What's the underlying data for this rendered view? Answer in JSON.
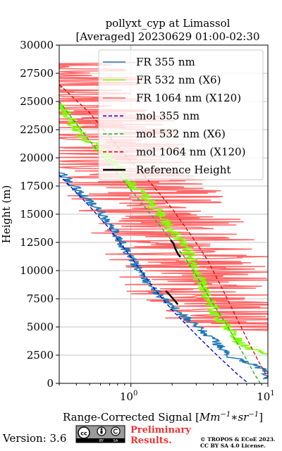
{
  "chart_data": {
    "type": "line",
    "title_line1": "pollyxt_cyp at Limassol",
    "title_line2": "[Averaged] 20230629 01:00-02:30",
    "xlabel_prefix": "Range-Corrected Signal [",
    "xlabel_math": "Mm",
    "xlabel_sup1": "−1",
    "xlabel_mid": "∗sr",
    "xlabel_sup2": "−1",
    "xlabel_suffix": "]",
    "ylabel": "Height (m)",
    "xscale": "log",
    "xlim": [
      0.3,
      10
    ],
    "ylim": [
      0,
      30000
    ],
    "x_tick_labels": [
      {
        "value": 1,
        "base": "10",
        "exp": "0"
      },
      {
        "value": 10,
        "base": "10",
        "exp": "1"
      }
    ],
    "y_ticks": [
      0,
      2500,
      5000,
      7500,
      10000,
      12500,
      15000,
      17500,
      20000,
      22500,
      25000,
      27500,
      30000
    ],
    "y_tick_labels": [
      "0",
      "2500",
      "5000",
      "7500",
      "10000",
      "12500",
      "15000",
      "17500",
      "20000",
      "22500",
      "25000",
      "27500",
      "30000"
    ],
    "grid": true,
    "legend_position": "upper right",
    "series": [
      {
        "name": "FR 355 nm",
        "color": "#1f77b4",
        "style": "solid",
        "noise": 0.04,
        "points": [
          [
            0.3,
            18800
          ],
          [
            0.35,
            18000
          ],
          [
            0.45,
            16600
          ],
          [
            0.6,
            15200
          ],
          [
            0.8,
            13000
          ],
          [
            1.0,
            11200
          ],
          [
            1.3,
            9000
          ],
          [
            1.7,
            7600
          ],
          [
            2.4,
            6000
          ],
          [
            3.6,
            4300
          ],
          [
            4.8,
            3000
          ],
          [
            5.5,
            2300
          ],
          [
            7.0,
            1900
          ],
          [
            9.5,
            1200
          ],
          [
            10,
            400
          ]
        ]
      },
      {
        "name": "FR 532 nm (X6)",
        "color": "#7fff00",
        "style": "solid",
        "noise": 0.05,
        "points": [
          [
            0.3,
            24800
          ],
          [
            0.35,
            23600
          ],
          [
            0.45,
            21900
          ],
          [
            0.6,
            20800
          ],
          [
            0.8,
            19300
          ],
          [
            1.0,
            17800
          ],
          [
            1.4,
            16000
          ],
          [
            1.9,
            13900
          ],
          [
            2.5,
            12000
          ],
          [
            3.1,
            9500
          ],
          [
            3.8,
            7100
          ],
          [
            4.4,
            5800
          ],
          [
            5.2,
            4800
          ],
          [
            6.0,
            3800
          ],
          [
            7.5,
            3000
          ],
          [
            9.0,
            2700
          ],
          [
            10,
            2600
          ]
        ]
      },
      {
        "name": "FR 1064 nm (X120)",
        "color": "#ff6666",
        "style": "solid",
        "noise": 0.6,
        "points": [
          [
            0.3,
            28500
          ],
          [
            0.4,
            26000
          ],
          [
            0.55,
            23000
          ],
          [
            0.75,
            20000
          ],
          [
            1.1,
            17500
          ],
          [
            1.6,
            15000
          ],
          [
            2.1,
            13000
          ],
          [
            2.7,
            11000
          ],
          [
            3.3,
            9000
          ],
          [
            4.2,
            7000
          ],
          [
            5.5,
            5500
          ],
          [
            7.0,
            5000
          ],
          [
            8.5,
            4800
          ],
          [
            10,
            4700
          ]
        ]
      },
      {
        "name": "mol 355 nm",
        "color": "#0000cc",
        "style": "dashed",
        "points": [
          [
            0.3,
            18500
          ],
          [
            0.5,
            15700
          ],
          [
            0.7,
            13700
          ],
          [
            1.0,
            11200
          ],
          [
            1.5,
            8300
          ],
          [
            2.0,
            6500
          ],
          [
            3.0,
            4300
          ],
          [
            4.0,
            2800
          ],
          [
            5.0,
            1700
          ],
          [
            6.0,
            800
          ],
          [
            7.2,
            0
          ]
        ]
      },
      {
        "name": "mol 532 nm (X6)",
        "color": "#22aa22",
        "style": "dashed",
        "points": [
          [
            0.3,
            25000
          ],
          [
            0.5,
            21500
          ],
          [
            0.8,
            18600
          ],
          [
            1.2,
            16000
          ],
          [
            1.8,
            13300
          ],
          [
            2.5,
            11100
          ],
          [
            3.2,
            9000
          ],
          [
            4.0,
            7000
          ],
          [
            5.0,
            5200
          ],
          [
            6.0,
            3500
          ],
          [
            7.0,
            2100
          ],
          [
            8.0,
            800
          ],
          [
            8.8,
            0
          ]
        ]
      },
      {
        "name": "mol 1064 nm (X120)",
        "color": "#dd0000",
        "style": "dashed",
        "points": [
          [
            0.3,
            26500
          ],
          [
            0.5,
            24000
          ],
          [
            0.8,
            21000
          ],
          [
            1.3,
            18200
          ],
          [
            2.0,
            15500
          ],
          [
            2.8,
            13000
          ],
          [
            3.6,
            11000
          ],
          [
            4.6,
            8500
          ],
          [
            5.8,
            6000
          ],
          [
            7.0,
            4000
          ],
          [
            8.5,
            2000
          ],
          [
            10,
            500
          ]
        ]
      },
      {
        "name": "Reference Height",
        "color": "#000000",
        "style": "solid",
        "segments": [
          [
            [
              1.8,
              8200
            ],
            [
              1.9,
              7900
            ],
            [
              2.0,
              7600
            ],
            [
              2.1,
              7300
            ],
            [
              2.2,
              7000
            ]
          ],
          [
            [
              1.95,
              12700
            ],
            [
              2.05,
              12400
            ],
            [
              2.1,
              12000
            ],
            [
              2.2,
              11500
            ],
            [
              2.3,
              11200
            ]
          ]
        ]
      }
    ]
  },
  "footer": {
    "version": "Version: 3.6",
    "cc_top": "cc",
    "cc_by": "BY",
    "cc_sa": "SA",
    "preliminary_line1": "Preliminary",
    "preliminary_line2": "Results.",
    "copyright_line1": "© TROPOS & ECoE 2023.",
    "copyright_line2": "CC BY SA 4.0 License.",
    "preliminary_color": "#ee3333"
  }
}
